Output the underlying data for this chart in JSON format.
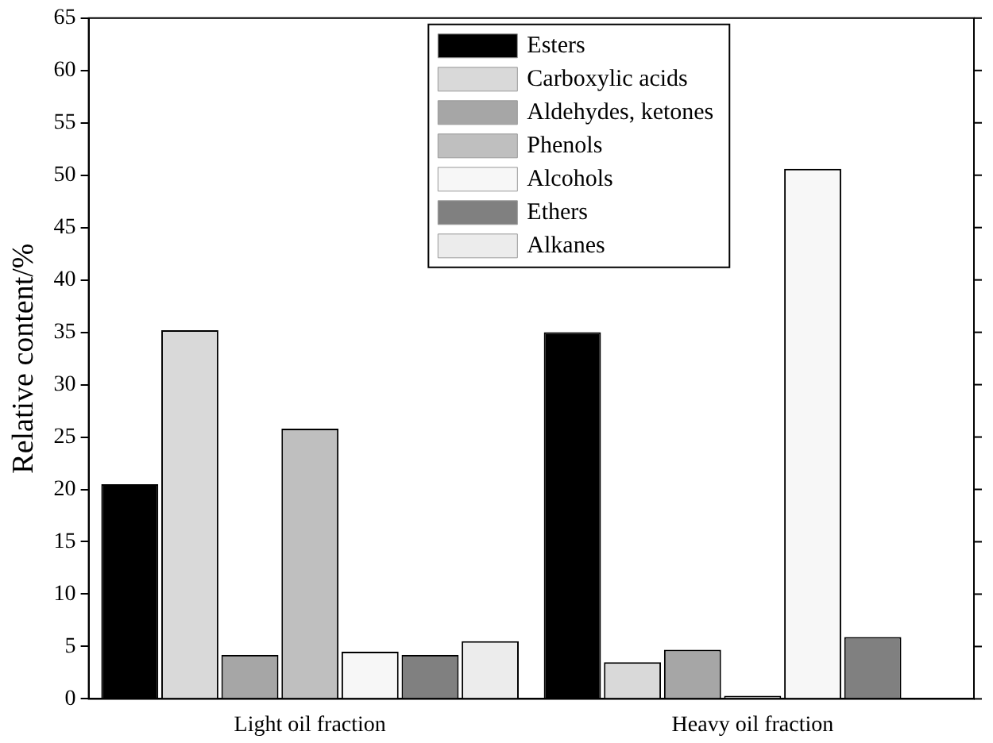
{
  "chart_data": {
    "type": "bar",
    "ylabel": "Relative content/%",
    "categories": [
      "Light oil fraction",
      "Heavy oil fraction"
    ],
    "series": [
      {
        "name": "Esters",
        "color": "#000000",
        "values": [
          20.5,
          35
        ]
      },
      {
        "name": "Carboxylic acids",
        "color": "#d9d9d9",
        "values": [
          35.2,
          3.5
        ]
      },
      {
        "name": "Aldehydes, ketones",
        "color": "#a6a6a6",
        "values": [
          4.2,
          4.7
        ]
      },
      {
        "name": "Phenols",
        "color": "#bfbfbf",
        "values": [
          25.8,
          0.3
        ]
      },
      {
        "name": "Alcohols",
        "color": "#f7f7f7",
        "values": [
          4.5,
          50.6
        ]
      },
      {
        "name": "Ethers",
        "color": "#808080",
        "values": [
          4.2,
          5.9
        ]
      },
      {
        "name": "Alkanes",
        "color": "#ececec",
        "values": [
          5.5,
          null
        ]
      }
    ],
    "ylim": [
      0,
      65
    ],
    "yticks": [
      0,
      5,
      10,
      15,
      20,
      25,
      30,
      35,
      40,
      45,
      50,
      55,
      60,
      65
    ],
    "grid": false,
    "legend": "top"
  }
}
